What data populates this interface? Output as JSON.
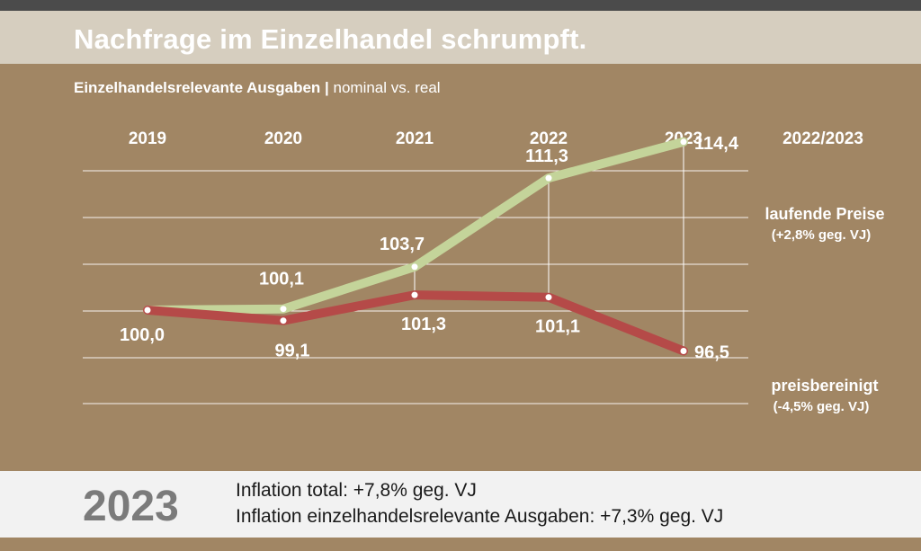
{
  "title": "Nachfrage im Einzelhandel schrumpft.",
  "subtitle": {
    "bold": "Einzelhandelsrelevante Ausgaben |",
    "regular": " nominal vs. real"
  },
  "change_column_header": "2022/2023",
  "chart_data": {
    "type": "line",
    "categories": [
      "2019",
      "2020",
      "2021",
      "2022",
      "2023"
    ],
    "series": [
      {
        "name": "laufende Preise",
        "values": [
          100.0,
          100.1,
          103.7,
          111.3,
          114.4
        ],
        "labels": [
          "",
          "100,1",
          "103,7",
          "111,3",
          "114,4"
        ],
        "change_note": "(+2,8% geg. VJ)",
        "color": "#c4d49a"
      },
      {
        "name": "preisbereinigt",
        "values": [
          100.0,
          99.1,
          101.3,
          101.1,
          96.5
        ],
        "labels": [
          "100,0",
          "99,1",
          "101,3",
          "101,1",
          "96,5"
        ],
        "change_note": "(-4,5% geg. VJ)",
        "color": "#b54a48"
      }
    ],
    "ylim": [
      92.0,
      118.0
    ],
    "grid": true
  },
  "footer": {
    "year": "2023",
    "inflation_total": "Inflation total: +7,8% geg. VJ",
    "inflation_retail": "Inflation einzelhandelsrelevante Ausgaben: +7,3% geg. VJ"
  },
  "colors": {
    "background": "#a18664",
    "title_band": "#d6cebf",
    "top_strip": "#4b4b4b",
    "footer_band": "#f2f2f2",
    "year_text": "#7b7b7b"
  }
}
